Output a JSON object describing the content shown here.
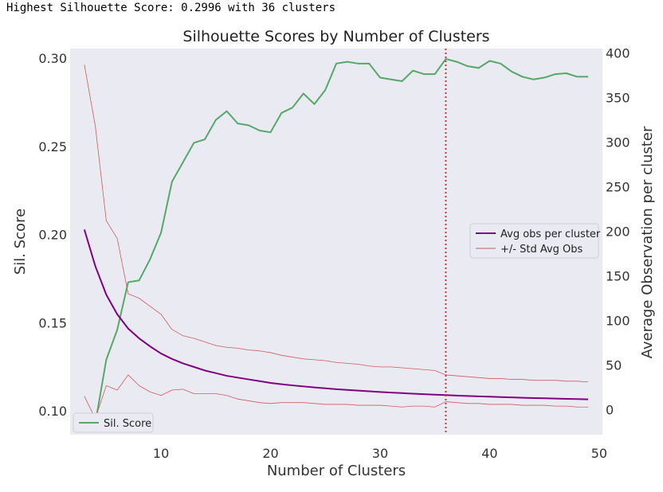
{
  "header_text": "Highest Silhouette Score: 0.2996 with 36 clusters",
  "colors": {
    "plot_bg": "#eaeaf2",
    "sil": "#55a868",
    "avg": "#800080",
    "std": "#cd5c5c",
    "vline": "#c0392b"
  },
  "chart_data": {
    "type": "line",
    "title": "Silhouette Scores by Number of Clusters",
    "xlabel": "Number of Clusters",
    "ylabel": "Sil. Score",
    "ylabel_right": "Average Observation per cluster",
    "xlim": [
      1.7,
      50.3
    ],
    "ylim": [
      0.0865,
      0.3055
    ],
    "ylim_right": [
      -28,
      405
    ],
    "x_ticks": [
      "10",
      "20",
      "30",
      "40",
      "50"
    ],
    "y_ticks": [
      "0.10",
      "0.15",
      "0.20",
      "0.25",
      "0.30"
    ],
    "y_ticks_right": [
      "0",
      "50",
      "100",
      "150",
      "200",
      "250",
      "300",
      "350",
      "400"
    ],
    "grid": false,
    "x": [
      3,
      4,
      5,
      6,
      7,
      8,
      9,
      10,
      11,
      12,
      13,
      14,
      15,
      16,
      17,
      18,
      19,
      20,
      21,
      22,
      23,
      24,
      25,
      26,
      27,
      28,
      29,
      30,
      31,
      32,
      33,
      34,
      35,
      36,
      37,
      38,
      39,
      40,
      41,
      42,
      43,
      44,
      45,
      46,
      47,
      48,
      49
    ],
    "series": [
      {
        "name": "Sil. Score",
        "axis": "left",
        "values": [
          0.095,
          0.093,
          0.129,
          0.146,
          0.173,
          0.174,
          0.186,
          0.201,
          0.23,
          0.241,
          0.252,
          0.254,
          0.265,
          0.27,
          0.263,
          0.262,
          0.259,
          0.258,
          0.269,
          0.272,
          0.28,
          0.274,
          0.282,
          0.297,
          0.298,
          0.297,
          0.297,
          0.289,
          0.288,
          0.287,
          0.293,
          0.291,
          0.291,
          0.2996,
          0.298,
          0.2955,
          0.2945,
          0.2985,
          0.297,
          0.2925,
          0.2895,
          0.288,
          0.289,
          0.291,
          0.2915,
          0.2895,
          0.2895
        ]
      },
      {
        "name": "Avg obs per cluster",
        "axis": "right",
        "values": [
          202,
          161,
          129,
          107,
          91,
          80,
          71,
          63,
          57,
          52,
          48,
          44,
          41,
          38,
          36,
          34,
          32,
          30,
          28.6,
          27.3,
          26.1,
          25,
          24,
          23,
          22.2,
          21.4,
          20.6,
          19.9,
          19.2,
          18.6,
          18,
          17.4,
          16.9,
          16.4,
          15.9,
          15.4,
          15,
          14.6,
          14.2,
          13.8,
          13.4,
          13.1,
          12.8,
          12.5,
          12.2,
          11.9,
          11.6
        ]
      },
      {
        "name": "+/- Std Avg Obs",
        "axis": "right",
        "values": [
          387,
          318,
          212,
          192,
          130,
          125,
          116,
          107,
          90,
          83,
          80,
          76,
          72,
          70,
          69,
          67,
          66,
          64,
          61,
          59,
          57,
          56,
          55,
          53,
          52,
          51,
          49,
          48,
          48,
          47,
          46,
          45,
          44,
          39,
          38,
          37,
          36,
          35,
          35,
          34,
          34,
          33,
          33,
          33,
          32,
          32,
          31
        ]
      },
      {
        "name": "std_lower",
        "axis": "right",
        "values": [
          15,
          -10,
          27,
          22,
          39,
          27,
          20,
          16,
          22,
          23,
          18,
          18,
          18,
          16,
          12,
          10,
          8,
          7,
          8,
          8,
          8,
          7,
          6,
          6,
          6,
          5,
          5,
          5,
          4,
          3,
          4,
          4,
          3,
          9,
          8,
          7,
          7,
          6,
          6,
          6,
          5,
          5,
          5,
          4,
          4,
          3,
          3
        ]
      }
    ],
    "vline_x": 36,
    "legends": [
      {
        "placement": "lower-left",
        "items": [
          "Sil. Score"
        ]
      },
      {
        "placement": "center-right",
        "items": [
          "Avg obs per cluster",
          "+/- Std Avg Obs"
        ]
      }
    ]
  }
}
